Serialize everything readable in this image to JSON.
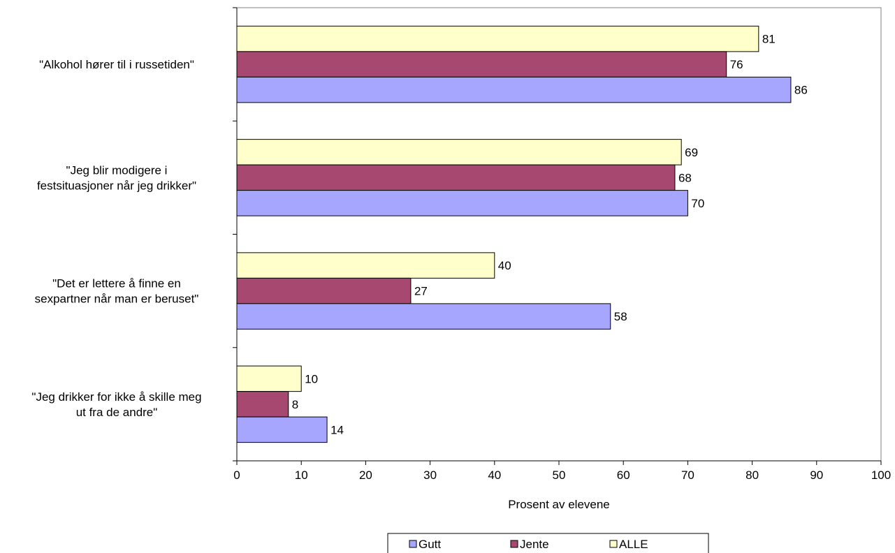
{
  "chart_data": {
    "type": "bar",
    "orientation": "horizontal",
    "categories": [
      [
        "\"Alkohol hører til i russetiden\""
      ],
      [
        "\"Jeg blir modigere i",
        "festsituasjoner når jeg drikker\""
      ],
      [
        "\"Det er lettere å finne en",
        "sexpartner når man er beruset\""
      ],
      [
        "\"Jeg drikker for ikke å skille meg",
        "ut fra de andre\""
      ]
    ],
    "series": [
      {
        "name": "Gutt",
        "color": "#A6A6FF",
        "values": [
          86,
          70,
          58,
          14
        ]
      },
      {
        "name": "Jente",
        "color": "#A64870",
        "values": [
          76,
          68,
          27,
          8
        ]
      },
      {
        "name": "ALLE",
        "color": "#FFFFCC",
        "values": [
          81,
          69,
          40,
          10
        ]
      }
    ],
    "bar_order_top_to_bottom": [
      "ALLE",
      "Jente",
      "Gutt"
    ],
    "xlabel": "Prosent av elevene",
    "xlim": [
      0,
      100
    ],
    "xticks": [
      "0",
      "10",
      "20",
      "30",
      "40",
      "50",
      "60",
      "70",
      "80",
      "90",
      "100"
    ],
    "grid": false,
    "legend_position": "bottom"
  }
}
